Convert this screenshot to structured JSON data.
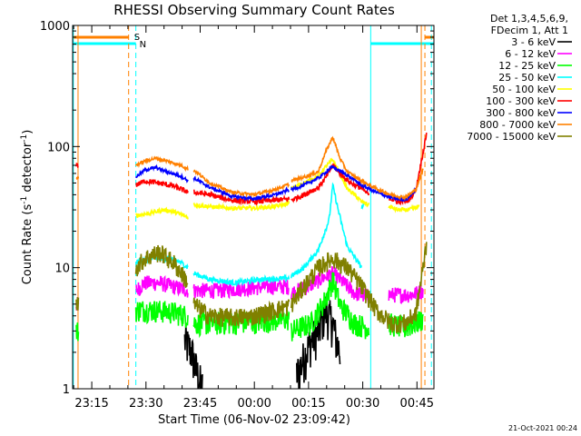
{
  "chart_data": {
    "type": "line",
    "title": "RHESSI Observing Summary Count Rates",
    "xlabel": "Start Time (06-Nov-02 23:09:42)",
    "ylabel_main": "Count Rate (s",
    "ylabel_sup1": "-1",
    "ylabel_mid": " detector",
    "ylabel_sup2": "-1",
    "ylabel_end": ")",
    "y_log": true,
    "xlim_min": [
      0,
      100
    ],
    "ylim": [
      1,
      1000
    ],
    "x_ticks": [
      {
        "min": 5.3,
        "label": "23:15"
      },
      {
        "min": 20.3,
        "label": "23:30"
      },
      {
        "min": 35.3,
        "label": "23:45"
      },
      {
        "min": 50.3,
        "label": "00:00"
      },
      {
        "min": 65.3,
        "label": "00:15"
      },
      {
        "min": 80.3,
        "label": "00:30"
      },
      {
        "min": 95.3,
        "label": "00:45"
      }
    ],
    "y_ticks": [
      {
        "v": 1,
        "label": "1"
      },
      {
        "v": 10,
        "label": "10"
      },
      {
        "v": 100,
        "label": "100"
      },
      {
        "v": 1000,
        "label": "1000"
      }
    ],
    "legend_header": [
      "Det 1,3,4,5,6,9,",
      "FDecim 1, Att 1"
    ],
    "footer_date": "21-Oct-2021 00:24",
    "markers": [
      {
        "label": "S",
        "color": "#ff8000"
      },
      {
        "label": "N",
        "color": "#00ffff"
      }
    ],
    "night_bars": [
      [
        0,
        17.5
      ],
      [
        82.5,
        100
      ]
    ],
    "saa_bars": [
      [
        0,
        15.5
      ],
      [
        97.5,
        100
      ]
    ],
    "vlines": [
      {
        "x": 0.2,
        "color": "#00ffff",
        "dash": false
      },
      {
        "x": 1.5,
        "color": "#ff8000",
        "dash": false
      },
      {
        "x": 15.5,
        "color": "#ff8000",
        "dash": true
      },
      {
        "x": 17.5,
        "color": "#00ffff",
        "dash": true
      },
      {
        "x": 82.5,
        "color": "#00ffff",
        "dash": false
      },
      {
        "x": 96.5,
        "color": "#ff8000",
        "dash": false
      },
      {
        "x": 97.5,
        "color": "#ff8000",
        "dash": true
      },
      {
        "x": 99.3,
        "color": "#00ffff",
        "dash": true
      }
    ],
    "series": [
      {
        "name": "3 - 6 keV",
        "color": "#000000",
        "noise": 0.4,
        "segments": [
          [
            [
              31,
              2.5
            ],
            [
              33,
              2
            ],
            [
              34,
              1.5
            ],
            [
              35,
              1.2
            ],
            [
              36,
              1
            ]
          ],
          [
            [
              62,
              1.3
            ],
            [
              64,
              1.8
            ],
            [
              66,
              2.5
            ],
            [
              68,
              3
            ],
            [
              70,
              4.5
            ],
            [
              72,
              3.5
            ],
            [
              73,
              2.5
            ],
            [
              74,
              2
            ]
          ]
        ]
      },
      {
        "name": "6 - 12 keV",
        "color": "#ff00ff",
        "noise": 0.15,
        "segments": [
          [
            [
              1,
              5
            ]
          ],
          [
            [
              17.5,
              6.5
            ],
            [
              20,
              7.5
            ],
            [
              24,
              7.5
            ],
            [
              28,
              7
            ],
            [
              32,
              6.5
            ]
          ],
          [
            [
              33.5,
              6.5
            ],
            [
              40,
              6.5
            ],
            [
              48,
              6.8
            ],
            [
              55,
              7
            ],
            [
              60,
              7
            ]
          ],
          [
            [
              60.5,
              6.2
            ],
            [
              65,
              7
            ],
            [
              70,
              8.5
            ],
            [
              72,
              9
            ],
            [
              75,
              7.5
            ],
            [
              78,
              6.2
            ],
            [
              82,
              5.8
            ]
          ],
          [
            [
              87.5,
              6
            ],
            [
              90,
              6
            ],
            [
              94,
              6
            ],
            [
              97,
              6.5
            ]
          ]
        ]
      },
      {
        "name": "12 - 25 keV",
        "color": "#00ff00",
        "noise": 0.22,
        "segments": [
          [
            [
              1,
              3
            ]
          ],
          [
            [
              17.5,
              4.5
            ],
            [
              22,
              4.5
            ],
            [
              28,
              4.3
            ],
            [
              32,
              4
            ]
          ],
          [
            [
              33.5,
              3.5
            ],
            [
              40,
              3.5
            ],
            [
              50,
              3.6
            ],
            [
              60,
              3.8
            ]
          ],
          [
            [
              60.5,
              3
            ],
            [
              66,
              3.5
            ],
            [
              70,
              5.5
            ],
            [
              72,
              8
            ],
            [
              74,
              5
            ],
            [
              78,
              3.5
            ],
            [
              82,
              3.2
            ]
          ],
          [
            [
              87.5,
              3.5
            ],
            [
              92,
              3.2
            ],
            [
              97,
              3.8
            ]
          ]
        ]
      },
      {
        "name": "25 - 50 keV",
        "color": "#00ffff",
        "noise": 0.05,
        "segments": [
          [
            [
              17.5,
              11
            ],
            [
              22,
              12
            ],
            [
              27,
              12
            ],
            [
              30,
              11
            ],
            [
              32,
              10
            ]
          ],
          [
            [
              33.5,
              9
            ],
            [
              38,
              8
            ],
            [
              45,
              7.5
            ],
            [
              52,
              8
            ],
            [
              60,
              8.2
            ]
          ],
          [
            [
              60.5,
              8.5
            ],
            [
              64,
              10
            ],
            [
              68,
              14
            ],
            [
              71,
              25
            ],
            [
              72,
              48
            ],
            [
              73.5,
              30
            ],
            [
              76,
              15
            ],
            [
              80,
              10
            ]
          ],
          [
            [
              80,
              32
            ]
          ]
        ]
      },
      {
        "name": "50 - 100 keV",
        "color": "#ffff00",
        "noise": 0.04,
        "segments": [
          [
            [
              17.5,
              27
            ],
            [
              21,
              28
            ],
            [
              25,
              30
            ],
            [
              28,
              29
            ],
            [
              32,
              26
            ]
          ],
          [
            [
              33.5,
              33
            ],
            [
              38,
              32
            ],
            [
              44,
              31
            ],
            [
              50,
              31
            ],
            [
              56,
              32
            ],
            [
              60,
              34
            ]
          ],
          [
            [
              60.5,
              45
            ],
            [
              64,
              50
            ],
            [
              68,
              57
            ],
            [
              70,
              68
            ],
            [
              72,
              78
            ],
            [
              74,
              60
            ],
            [
              76,
              45
            ],
            [
              78,
              40
            ],
            [
              80,
              35
            ],
            [
              82,
              33
            ]
          ],
          [
            [
              87.5,
              32
            ],
            [
              90,
              30
            ],
            [
              93,
              30
            ],
            [
              96,
              32
            ]
          ]
        ]
      },
      {
        "name": "100 - 300 keV",
        "color": "#ff0000",
        "noise": 0.05,
        "segments": [
          [
            [
              1,
              70
            ]
          ],
          [
            [
              17.5,
              48
            ],
            [
              20,
              52
            ],
            [
              24,
              50
            ],
            [
              28,
              47
            ],
            [
              32,
              42
            ]
          ],
          [
            [
              33.5,
              42
            ],
            [
              38,
              40
            ],
            [
              44,
              36
            ],
            [
              50,
              35
            ],
            [
              56,
              36
            ],
            [
              60,
              37
            ]
          ],
          [
            [
              60.5,
              36
            ],
            [
              64,
              40
            ],
            [
              68,
              46
            ],
            [
              70,
              55
            ],
            [
              72,
              70
            ],
            [
              74,
              60
            ],
            [
              77,
              50
            ],
            [
              80,
              45
            ],
            [
              82,
              40
            ]
          ],
          [
            [
              87.5,
              38
            ],
            [
              90,
              35
            ],
            [
              93,
              36
            ],
            [
              95,
              44
            ],
            [
              97,
              90
            ],
            [
              98,
              130
            ]
          ]
        ]
      },
      {
        "name": "300 - 800 keV",
        "color": "#0000ff",
        "noise": 0.03,
        "segments": [
          [
            [
              17.5,
              56
            ],
            [
              20,
              64
            ],
            [
              23,
              67
            ],
            [
              26,
              62
            ],
            [
              30,
              57
            ],
            [
              32,
              52
            ]
          ],
          [
            [
              33.5,
              55
            ],
            [
              38,
              46
            ],
            [
              44,
              39
            ],
            [
              50,
              37
            ],
            [
              56,
              40
            ],
            [
              60,
              44
            ]
          ],
          [
            [
              60.5,
              44
            ],
            [
              64,
              48
            ],
            [
              68,
              55
            ],
            [
              72,
              68
            ],
            [
              76,
              58
            ],
            [
              80,
              48
            ],
            [
              84,
              42
            ],
            [
              88,
              38
            ],
            [
              92,
              36
            ],
            [
              95,
              44
            ]
          ]
        ]
      },
      {
        "name": "800 - 7000 keV",
        "color": "#ff8000",
        "noise": 0.03,
        "segments": [
          [
            [
              1,
              55
            ]
          ],
          [
            [
              17.5,
              70
            ],
            [
              20,
              76
            ],
            [
              23,
              80
            ],
            [
              26,
              76
            ],
            [
              30,
              70
            ],
            [
              32,
              65
            ]
          ],
          [
            [
              33.5,
              64
            ],
            [
              38,
              50
            ],
            [
              44,
              42
            ],
            [
              50,
              40
            ],
            [
              56,
              44
            ],
            [
              60,
              49
            ]
          ],
          [
            [
              60.5,
              52
            ],
            [
              64,
              56
            ],
            [
              68,
              62
            ],
            [
              70,
              90
            ],
            [
              72,
              120
            ],
            [
              74,
              80
            ],
            [
              76,
              62
            ],
            [
              80,
              52
            ],
            [
              84,
              45
            ],
            [
              88,
              40
            ],
            [
              92,
              38
            ],
            [
              95,
              44
            ],
            [
              97,
              65
            ]
          ]
        ]
      },
      {
        "name": "7000 - 15000 keV",
        "color": "#808000",
        "noise": 0.18,
        "segments": [
          [
            [
              1,
              5
            ]
          ],
          [
            [
              17.5,
              10
            ],
            [
              20,
              12
            ],
            [
              24,
              13.5
            ],
            [
              28,
              11
            ],
            [
              32,
              7.5
            ]
          ],
          [
            [
              33.5,
              5
            ],
            [
              38,
              4
            ],
            [
              44,
              3.9
            ],
            [
              50,
              4
            ],
            [
              56,
              4.5
            ],
            [
              60,
              4.8
            ]
          ],
          [
            [
              60.5,
              5
            ],
            [
              64,
              7
            ],
            [
              68,
              10
            ],
            [
              72,
              12
            ],
            [
              76,
              10
            ],
            [
              80,
              7
            ],
            [
              84,
              4.5
            ],
            [
              88,
              3.5
            ],
            [
              92,
              3.5
            ],
            [
              95,
              4.2
            ],
            [
              97,
              10
            ],
            [
              98,
              17
            ]
          ]
        ]
      }
    ]
  }
}
